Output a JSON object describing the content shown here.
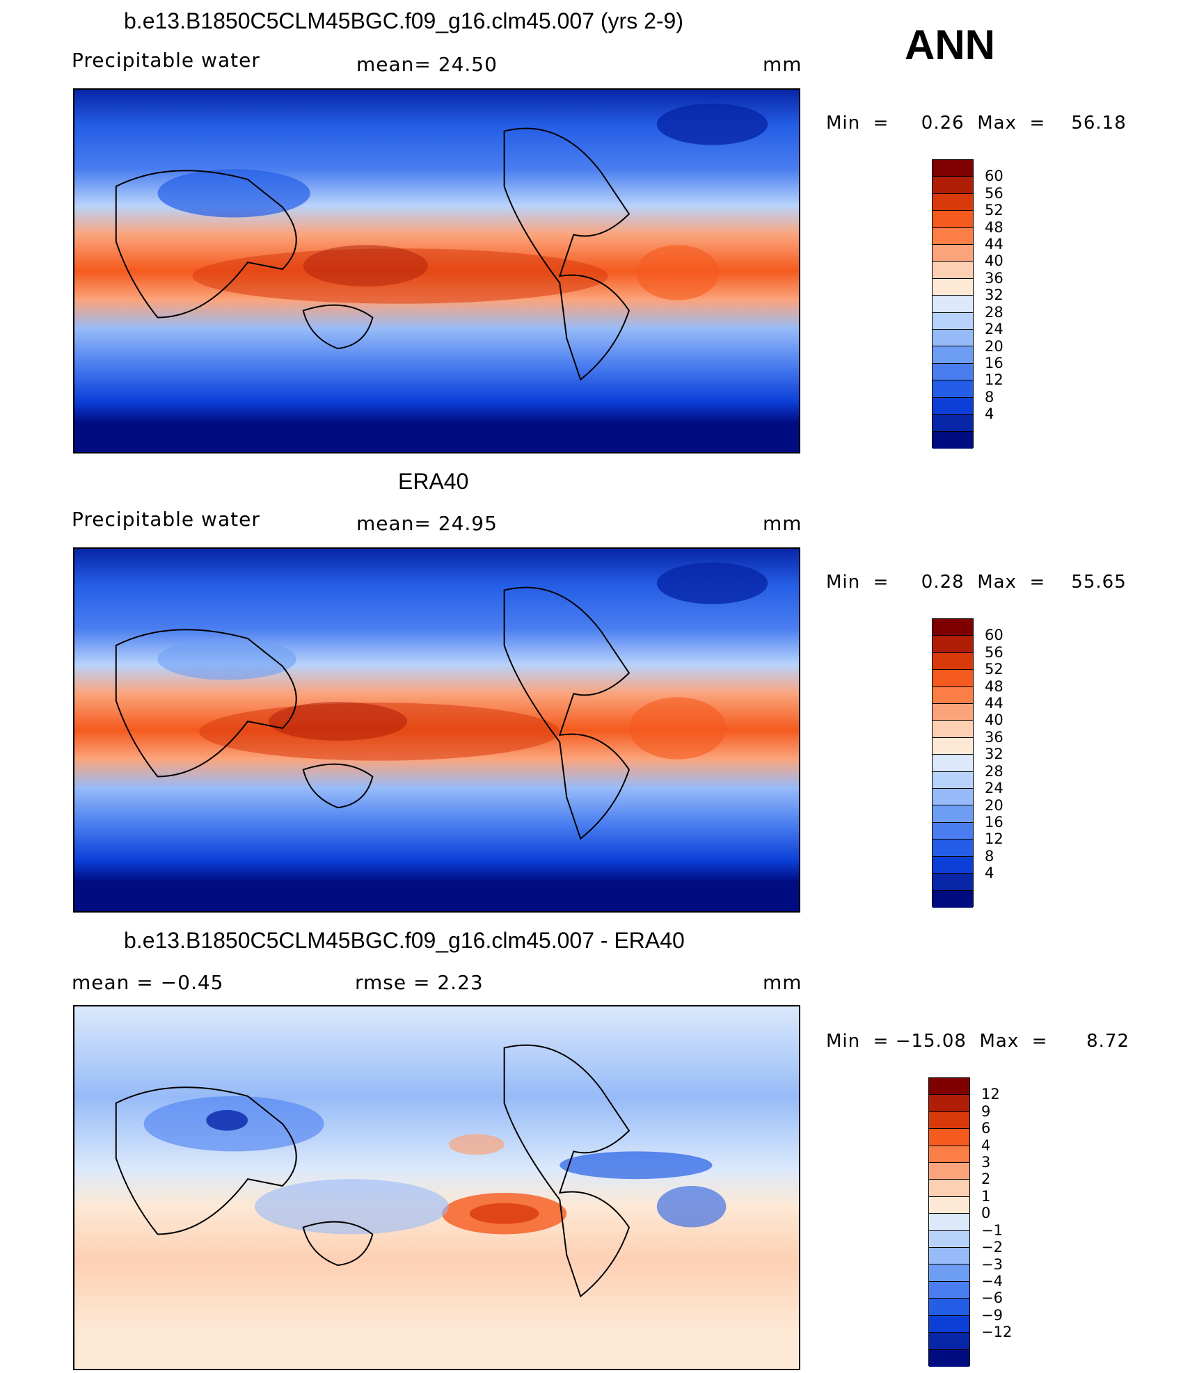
{
  "season": "ANN",
  "unit": "mm",
  "panels": [
    {
      "id": "model",
      "title": "b.e13.B1850C5CLM45BGC.f09_g16.clm45.007 (yrs 2-9)",
      "left_label": "Precipitable  water",
      "mid_label": "mean=   24.50",
      "unit": "mm",
      "min_max": "Min  =     0.26  Max  =    56.18",
      "colorbar": {
        "colors": [
          "#7f0000",
          "#b01e08",
          "#d93a0c",
          "#f55a1e",
          "#fa7e45",
          "#fba47c",
          "#fdd0b4",
          "#fde9d6",
          "#dbe9fb",
          "#b8d3fb",
          "#97bbf8",
          "#6e9ef3",
          "#4a7ef0",
          "#245ee6",
          "#0c3fd8",
          "#0826a8",
          "#000c80"
        ],
        "labels": [
          "60",
          "56",
          "52",
          "48",
          "44",
          "40",
          "36",
          "32",
          "28",
          "24",
          "20",
          "16",
          "12",
          "8",
          "4"
        ]
      }
    },
    {
      "id": "obs",
      "title": "ERA40",
      "left_label": "Precipitable  water",
      "mid_label": "mean=   24.95",
      "unit": "mm",
      "min_max": "Min  =     0.28  Max  =    55.65",
      "colorbar": {
        "colors": [
          "#7f0000",
          "#b01e08",
          "#d93a0c",
          "#f55a1e",
          "#fa7e45",
          "#fba47c",
          "#fdd0b4",
          "#fde9d6",
          "#dbe9fb",
          "#b8d3fb",
          "#97bbf8",
          "#6e9ef3",
          "#4a7ef0",
          "#245ee6",
          "#0c3fd8",
          "#0826a8",
          "#000c80"
        ],
        "labels": [
          "60",
          "56",
          "52",
          "48",
          "44",
          "40",
          "36",
          "32",
          "28",
          "24",
          "20",
          "16",
          "12",
          "8",
          "4"
        ]
      }
    },
    {
      "id": "diff",
      "title": "b.e13.B1850C5CLM45BGC.f09_g16.clm45.007 - ERA40",
      "left_label": "mean  =    −0.45",
      "mid_label": "rmse  =     2.23",
      "unit": "mm",
      "min_max": "Min  = −15.08  Max  =      8.72",
      "colorbar": {
        "colors": [
          "#7f0000",
          "#b01e08",
          "#d93a0c",
          "#f55a1e",
          "#fa7e45",
          "#fba47c",
          "#fdd0b4",
          "#fde9d6",
          "#dbe9fb",
          "#b8d3fb",
          "#97bbf8",
          "#6e9ef3",
          "#4a7ef0",
          "#245ee6",
          "#0c3fd8",
          "#0826a8",
          "#000c80"
        ],
        "labels": [
          "12",
          "9",
          "6",
          "4",
          "3",
          "2",
          "1",
          "0",
          "−1",
          "−2",
          "−3",
          "−4",
          "−6",
          "−9",
          "−12"
        ]
      }
    }
  ]
}
